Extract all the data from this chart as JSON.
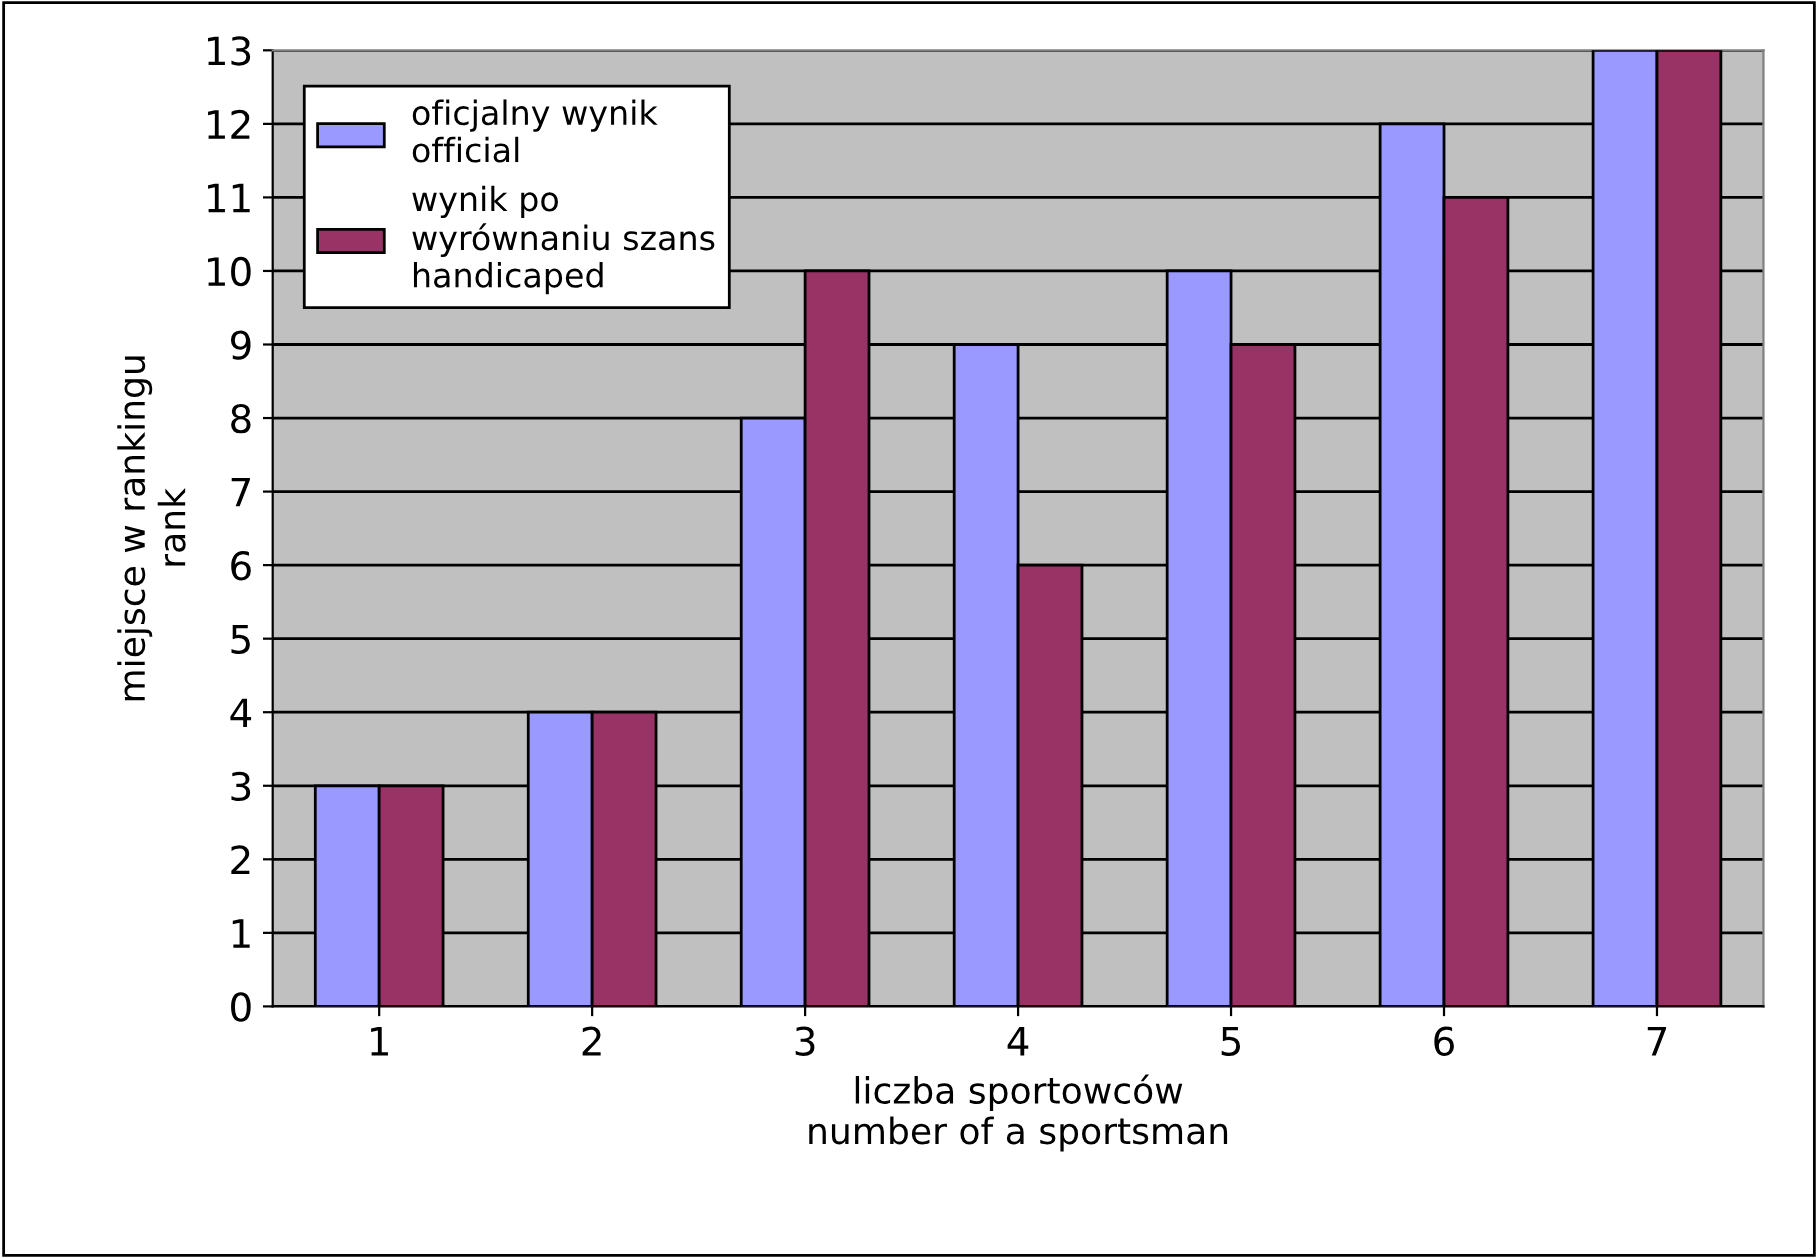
{
  "chart_data": {
    "type": "bar",
    "xlabel": "liczba sportowców\nnumber of a sportsman",
    "ylabel": "miejsce w rankingu\nrank",
    "categories": [
      "1",
      "2",
      "3",
      "4",
      "5",
      "6",
      "7"
    ],
    "series": [
      {
        "name": "oficjalny wynik\nofficial",
        "color": "#9999ff",
        "values": [
          3,
          4,
          8,
          9,
          10,
          12,
          13
        ]
      },
      {
        "name": "wynik po\nwyrównaniu szans\nhandicaped",
        "color": "#993366",
        "values": [
          3,
          4,
          10,
          6,
          9,
          11,
          13
        ]
      }
    ],
    "ylim": [
      0,
      13
    ],
    "yticks": [
      0,
      1,
      2,
      3,
      4,
      5,
      6,
      7,
      8,
      9,
      10,
      11,
      12,
      13
    ],
    "grid": "y",
    "legend": "top left"
  }
}
